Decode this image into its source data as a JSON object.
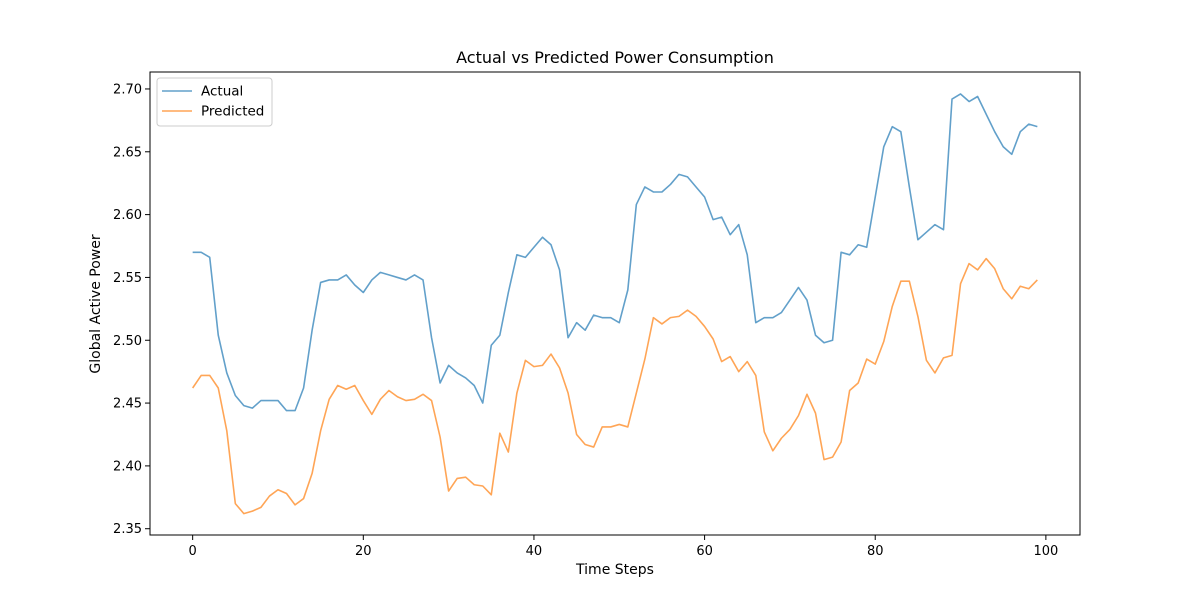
{
  "chart_data": {
    "type": "line",
    "title": "Actual vs Predicted Power Consumption",
    "xlabel": "Time Steps",
    "ylabel": "Global Active Power",
    "xlim": [
      -5,
      104
    ],
    "ylim": [
      2.345,
      2.7135
    ],
    "xticks": [
      0,
      20,
      40,
      60,
      80,
      100
    ],
    "xtick_labels": [
      "0",
      "20",
      "40",
      "60",
      "80",
      "100"
    ],
    "yticks": [
      2.35,
      2.4,
      2.45,
      2.5,
      2.55,
      2.6,
      2.65,
      2.7
    ],
    "ytick_labels": [
      "2.35",
      "2.40",
      "2.45",
      "2.50",
      "2.55",
      "2.60",
      "2.65",
      "2.70"
    ],
    "grid": false,
    "legend_position": "top-left",
    "series": [
      {
        "name": "Actual",
        "color": "#1f77b4",
        "values": [
          2.57,
          2.57,
          2.566,
          2.504,
          2.474,
          2.456,
          2.448,
          2.446,
          2.452,
          2.452,
          2.452,
          2.444,
          2.444,
          2.462,
          2.508,
          2.546,
          2.548,
          2.548,
          2.552,
          2.544,
          2.538,
          2.548,
          2.554,
          2.552,
          2.55,
          2.548,
          2.552,
          2.548,
          2.502,
          2.466,
          2.48,
          2.474,
          2.47,
          2.464,
          2.45,
          2.496,
          2.504,
          2.538,
          2.568,
          2.566,
          2.574,
          2.582,
          2.576,
          2.556,
          2.502,
          2.514,
          2.508,
          2.52,
          2.518,
          2.518,
          2.514,
          2.54,
          2.608,
          2.622,
          2.618,
          2.618,
          2.624,
          2.632,
          2.63,
          2.622,
          2.614,
          2.596,
          2.598,
          2.584,
          2.592,
          2.568,
          2.514,
          2.518,
          2.518,
          2.522,
          2.532,
          2.542,
          2.532,
          2.504,
          2.498,
          2.5,
          2.57,
          2.568,
          2.576,
          2.574,
          2.614,
          2.654,
          2.67,
          2.666,
          2.622,
          2.58,
          2.586,
          2.592,
          2.588,
          2.692,
          2.696,
          2.69,
          2.694,
          2.68,
          2.666,
          2.654,
          2.648,
          2.666,
          2.672,
          2.67
        ]
      },
      {
        "name": "Predicted",
        "color": "#ff7f0e",
        "values": [
          2.462,
          2.472,
          2.472,
          2.462,
          2.428,
          2.37,
          2.362,
          2.364,
          2.367,
          2.376,
          2.381,
          2.378,
          2.369,
          2.374,
          2.394,
          2.428,
          2.453,
          2.464,
          2.461,
          2.464,
          2.452,
          2.441,
          2.453,
          2.46,
          2.455,
          2.452,
          2.453,
          2.457,
          2.452,
          2.423,
          2.38,
          2.39,
          2.391,
          2.385,
          2.384,
          2.377,
          2.426,
          2.411,
          2.458,
          2.484,
          2.479,
          2.48,
          2.489,
          2.478,
          2.458,
          2.425,
          2.417,
          2.415,
          2.431,
          2.431,
          2.433,
          2.431,
          2.458,
          2.485,
          2.518,
          2.513,
          2.518,
          2.519,
          2.524,
          2.519,
          2.511,
          2.501,
          2.483,
          2.487,
          2.475,
          2.483,
          2.472,
          2.427,
          2.412,
          2.422,
          2.429,
          2.44,
          2.457,
          2.442,
          2.405,
          2.407,
          2.419,
          2.46,
          2.466,
          2.485,
          2.481,
          2.499,
          2.527,
          2.547,
          2.547,
          2.519,
          2.484,
          2.474,
          2.486,
          2.488,
          2.545,
          2.561,
          2.556,
          2.565,
          2.557,
          2.541,
          2.533,
          2.543,
          2.541,
          2.548
        ]
      }
    ]
  }
}
